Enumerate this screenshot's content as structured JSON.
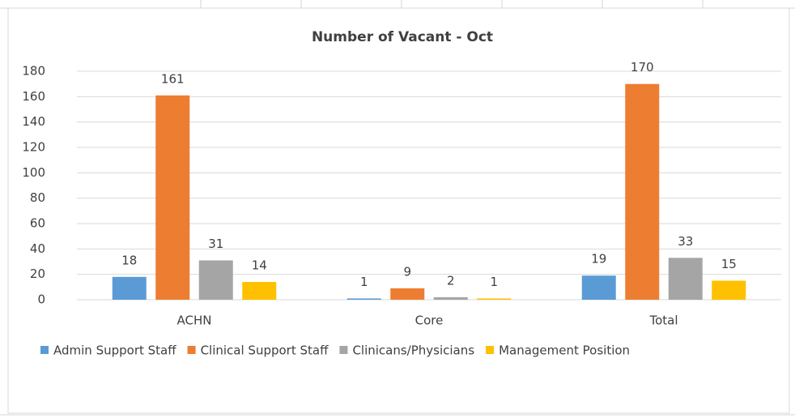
{
  "chart_data": {
    "type": "bar",
    "title": "Number of Vacant - Oct",
    "categories": [
      "ACHN",
      "Core",
      "Total"
    ],
    "series": [
      {
        "name": "Admin Support Staff",
        "color": "#5b9bd5",
        "values": [
          18,
          1,
          19
        ]
      },
      {
        "name": "Clinical Support Staff",
        "color": "#ed7d31",
        "values": [
          161,
          9,
          170
        ]
      },
      {
        "name": "Clinicans/Physicians",
        "color": "#a5a5a5",
        "values": [
          31,
          2,
          33
        ]
      },
      {
        "name": "Management Position",
        "color": "#ffc000",
        "values": [
          14,
          1,
          15
        ]
      }
    ],
    "ylim": [
      0,
      180
    ],
    "yticks": [
      0,
      20,
      40,
      60,
      80,
      100,
      120,
      140,
      160,
      180
    ],
    "grid": true,
    "legend": "bottom"
  }
}
